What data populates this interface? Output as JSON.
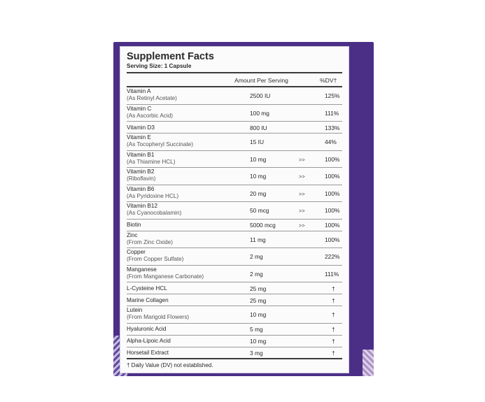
{
  "label": {
    "title": "Supplement Facts",
    "serving_size": "Serving Size: 1 Capsule",
    "columns": {
      "amount": "Amount Per Serving",
      "daily_value": "%DV†"
    },
    "rows": [
      {
        "name": "Vitamin A",
        "sub": "(As Retinyl Acetate)",
        "amount": "2500 IU",
        "arrow": "",
        "dv": "125%"
      },
      {
        "name": "Vitamin C",
        "sub": "(As Ascorbic Acid)",
        "amount": "100 mg",
        "arrow": "",
        "dv": "111%"
      },
      {
        "name": "Vitamin D3",
        "sub": "",
        "amount": "800 IU",
        "arrow": "",
        "dv": "133%"
      },
      {
        "name": "Vitamin E",
        "sub": "(As Tocopheryl Succinate)",
        "amount": "15 IU",
        "arrow": "",
        "dv": "44%"
      },
      {
        "name": "Vitamin B1",
        "sub": "(As Thiamine HCL)",
        "amount": "10 mg",
        "arrow": ">>",
        "dv": "100%"
      },
      {
        "name": "Vitamin B2",
        "sub": "(Riboflavin)",
        "amount": "10 mg",
        "arrow": ">>",
        "dv": "100%"
      },
      {
        "name": "Vitamin B6",
        "sub": "(As Pyridoxine HCL)",
        "amount": "20 mg",
        "arrow": ">>",
        "dv": "100%"
      },
      {
        "name": "Vitamin B12",
        "sub": "(As Cyanocobalamin)",
        "amount": "50 mcg",
        "arrow": ">>",
        "dv": "100%"
      },
      {
        "name": "Biotin",
        "sub": "",
        "amount": "5000 mcg",
        "arrow": ">>",
        "dv": "100%"
      },
      {
        "name": "Zinc",
        "sub": "(From Zinc Oxide)",
        "amount": "11 mg",
        "arrow": "",
        "dv": "100%"
      },
      {
        "name": "Copper",
        "sub": "(From Copper Sulfate)",
        "amount": "2 mg",
        "arrow": "",
        "dv": "222%"
      },
      {
        "name": "Manganese",
        "sub": "(From Manganese Carbonate)",
        "amount": "2 mg",
        "arrow": "",
        "dv": "111%"
      },
      {
        "name": "L-Cysteine HCL",
        "sub": "",
        "amount": "25 mg",
        "arrow": "",
        "dv": "†"
      },
      {
        "name": "Marine Collagen",
        "sub": "",
        "amount": "25 mg",
        "arrow": "",
        "dv": "†"
      },
      {
        "name": "Lutein",
        "sub": "(From Marigold Flowers)",
        "amount": "10 mg",
        "arrow": "",
        "dv": "†"
      },
      {
        "name": "Hyaluronic Acid",
        "sub": "",
        "amount": "5 mg",
        "arrow": "",
        "dv": "†"
      },
      {
        "name": "Alpha-Lipoic Acid",
        "sub": "",
        "amount": "10 mg",
        "arrow": "",
        "dv": "†"
      },
      {
        "name": "Horsetail Extract",
        "sub": "",
        "amount": "3 mg",
        "arrow": "",
        "dv": "†"
      }
    ],
    "footnote": "† Daily Value (DV) not established."
  },
  "colors": {
    "box_purple": "#4b2f86",
    "label_background": "#fbfbfc",
    "text": "#262626"
  }
}
